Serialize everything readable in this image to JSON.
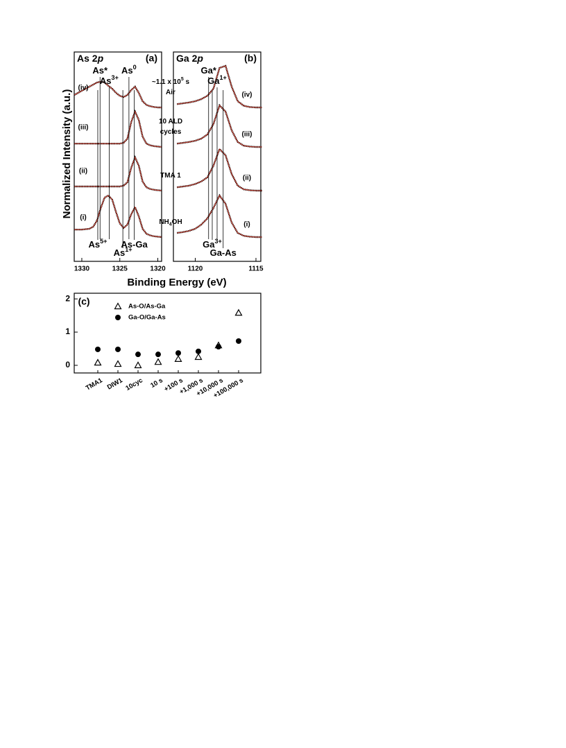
{
  "chart_data": [
    {
      "type": "spectrum",
      "panel": "(a)",
      "title": {
        "text": "As 2",
        "italic": "p"
      },
      "ylabel": "Normalized Intensity (a.u.)",
      "xlabel": "Binding Energy (eV)",
      "xlim": [
        1331,
        1319.5
      ],
      "xticks": [
        1330,
        1325,
        1320
      ],
      "x": [
        1331,
        1330.5,
        1330,
        1329.5,
        1329,
        1328.5,
        1328,
        1327.5,
        1327,
        1326.5,
        1326,
        1325.5,
        1325,
        1324.5,
        1324,
        1323.5,
        1323,
        1322.5,
        1322,
        1321.5,
        1321,
        1320.5,
        1320,
        1319.5
      ],
      "series": [
        {
          "name": "(i)",
          "color": "#c0392b",
          "condition": [
            {
              "text": "NH",
              "sub": "4",
              "after": "OH"
            }
          ],
          "values": [
            0.18,
            0.18,
            0.18,
            0.19,
            0.2,
            0.25,
            0.4,
            0.7,
            0.95,
            1.0,
            0.9,
            0.6,
            0.33,
            0.22,
            0.3,
            0.55,
            0.72,
            0.5,
            0.2,
            0.08,
            0.04,
            0.02,
            0.01,
            0
          ]
        },
        {
          "name": "(ii)",
          "color": "#c0392b",
          "condition": [
            {
              "text": "TMA 1"
            }
          ],
          "values": [
            0.1,
            0.1,
            0.1,
            0.1,
            0.1,
            0.1,
            0.1,
            0.1,
            0.1,
            0.1,
            0.1,
            0.1,
            0.1,
            0.12,
            0.2,
            0.55,
            0.8,
            0.6,
            0.22,
            0.08,
            0.04,
            0.02,
            0.01,
            0
          ]
        },
        {
          "name": "(iii)",
          "color": "#c0392b",
          "condition": [
            {
              "text": "10 ALD"
            },
            {
              "text": "cycles"
            }
          ],
          "values": [
            0.08,
            0.08,
            0.08,
            0.08,
            0.08,
            0.08,
            0.08,
            0.08,
            0.08,
            0.08,
            0.08,
            0.08,
            0.08,
            0.1,
            0.2,
            0.6,
            0.85,
            0.65,
            0.25,
            0.08,
            0.04,
            0.02,
            0.01,
            0
          ]
        },
        {
          "name": "(iv)",
          "color": "#c0392b",
          "condition": [
            {
              "text": "~1.1 x 10",
              "sup": "5",
              "after": " s"
            },
            {
              "text": "Air"
            }
          ],
          "values": [
            0.3,
            0.35,
            0.4,
            0.45,
            0.5,
            0.55,
            0.6,
            0.62,
            0.6,
            0.52,
            0.45,
            0.35,
            0.28,
            0.25,
            0.3,
            0.42,
            0.5,
            0.35,
            0.15,
            0.06,
            0.03,
            0.01,
            0,
            0
          ]
        }
      ],
      "annotations": [
        {
          "text": "As*",
          "x": 1327.6,
          "position": "top"
        },
        {
          "text": "As",
          "sup": "3+",
          "x": 1326.4,
          "position": "top"
        },
        {
          "text": "As",
          "sup": "0",
          "x": 1323.8,
          "position": "top"
        },
        {
          "text": "As",
          "sup": "5+",
          "x": 1327.9,
          "position": "bottom"
        },
        {
          "text": "As",
          "sup": "1+",
          "x": 1324.6,
          "position": "bottom"
        },
        {
          "text": "As-Ga",
          "x": 1323.1,
          "position": "bottom"
        }
      ]
    },
    {
      "type": "spectrum",
      "panel": "(b)",
      "title": {
        "text": "Ga 2",
        "italic": "p"
      },
      "xlim": [
        1121.8,
        1114.6
      ],
      "xticks": [
        1120,
        1115
      ],
      "x": [
        1121.5,
        1121,
        1120.5,
        1120,
        1119.5,
        1119,
        1118.5,
        1118,
        1117.5,
        1117,
        1116.5,
        1116,
        1115.5,
        1115,
        1114.5
      ],
      "series": [
        {
          "name": "(i)",
          "color": "#c0392b",
          "values": [
            0.1,
            0.12,
            0.15,
            0.2,
            0.3,
            0.45,
            0.7,
            1.0,
            0.8,
            0.35,
            0.1,
            0.03,
            0.01,
            0,
            0
          ]
        },
        {
          "name": "(ii)",
          "color": "#c0392b",
          "values": [
            0.08,
            0.1,
            0.12,
            0.16,
            0.22,
            0.32,
            0.6,
            1.0,
            0.85,
            0.4,
            0.12,
            0.03,
            0.01,
            0,
            0
          ]
        },
        {
          "name": "(iii)",
          "color": "#c0392b",
          "values": [
            0.08,
            0.1,
            0.12,
            0.15,
            0.2,
            0.3,
            0.55,
            1.0,
            0.85,
            0.4,
            0.12,
            0.03,
            0.01,
            0,
            0
          ]
        },
        {
          "name": "(iv)",
          "color": "#c0392b",
          "values": [
            0.08,
            0.1,
            0.12,
            0.15,
            0.2,
            0.28,
            0.45,
            0.95,
            1.0,
            0.5,
            0.15,
            0.04,
            0.01,
            0,
            0
          ]
        }
      ],
      "annotations": [
        {
          "text": "Ga*",
          "x": 1118.9,
          "position": "top"
        },
        {
          "text": "Ga",
          "sup": "1+",
          "x": 1118.2,
          "position": "top"
        },
        {
          "text": "Ga",
          "sup": "3+",
          "x": 1118.6,
          "position": "bottom"
        },
        {
          "text": "Ga-As",
          "x": 1117.7,
          "position": "bottom"
        }
      ]
    },
    {
      "type": "scatter",
      "panel": "(c)",
      "categories": [
        "TMA1",
        "DIW1",
        "10cyc",
        "10 s",
        "+100 s",
        "+1,000 s",
        "+10,000 s",
        "+100,000 s"
      ],
      "ylim": [
        -0.23,
        2.17
      ],
      "yticks": [
        0,
        1,
        2
      ],
      "series": [
        {
          "name": "As-O/As-Ga",
          "marker": "triangle-open",
          "color": "#000000",
          "values": [
            0.08,
            0.04,
            0.0,
            0.1,
            0.19,
            0.25,
            0.6,
            1.58
          ]
        },
        {
          "name": "Ga-O/Ga-As",
          "marker": "circle",
          "color": "#000000",
          "values": [
            0.48,
            0.48,
            0.33,
            0.33,
            0.37,
            0.42,
            0.56,
            0.73
          ]
        }
      ]
    }
  ]
}
